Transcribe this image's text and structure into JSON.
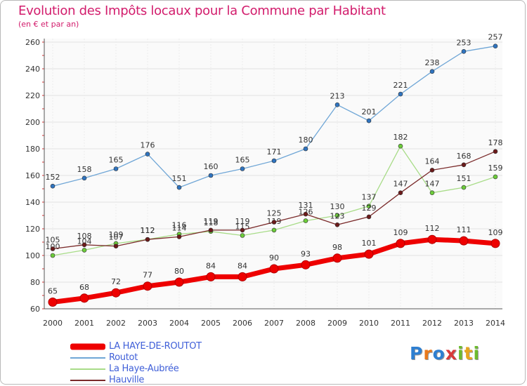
{
  "title": "Evolution des Impôts locaux pour la Commune par Habitant",
  "subtitle": "(en € et par an)",
  "logo": {
    "letters": [
      "P",
      "r",
      "o",
      "x",
      "i",
      "t",
      "i"
    ],
    "colors": [
      "#2e7fd1",
      "#e8791c",
      "#2e7fd1",
      "#d83a3a",
      "#6dbb2e",
      "#e8a51c",
      "#6dbb2e"
    ]
  },
  "chart_data": {
    "type": "line",
    "x": [
      2000,
      2001,
      2002,
      2003,
      2004,
      2005,
      2006,
      2007,
      2008,
      2009,
      2010,
      2011,
      2012,
      2013,
      2014
    ],
    "ylim": [
      60,
      260
    ],
    "yticks": [
      60,
      80,
      100,
      120,
      140,
      160,
      180,
      200,
      220,
      240,
      260
    ],
    "grid": true,
    "legend_position": "bottom-left",
    "series": [
      {
        "name": "LA HAYE-DE-ROUTOT",
        "color": "#ee0000",
        "marker": "#ee0000",
        "values": [
          65,
          68,
          72,
          77,
          80,
          84,
          84,
          90,
          93,
          98,
          101,
          109,
          112,
          111,
          109
        ]
      },
      {
        "name": "Routot",
        "color": "#6fa6d6",
        "marker": "#2f74c0",
        "values": [
          152,
          158,
          165,
          176,
          151,
          160,
          165,
          171,
          180,
          213,
          201,
          221,
          238,
          253,
          257
        ]
      },
      {
        "name": "La Haye-Aubrée",
        "color": "#a8dc88",
        "marker": "#6ccc3a",
        "values": [
          100,
          104,
          109,
          112,
          116,
          118,
          115,
          119,
          126,
          130,
          137,
          182,
          147,
          151,
          159
        ]
      },
      {
        "name": "Hauville",
        "color": "#7a2a2a",
        "marker": "#6b1a1a",
        "values": [
          105,
          108,
          107,
          112,
          114,
          119,
          119,
          125,
          131,
          123,
          129,
          147,
          164,
          168,
          178
        ]
      }
    ]
  }
}
